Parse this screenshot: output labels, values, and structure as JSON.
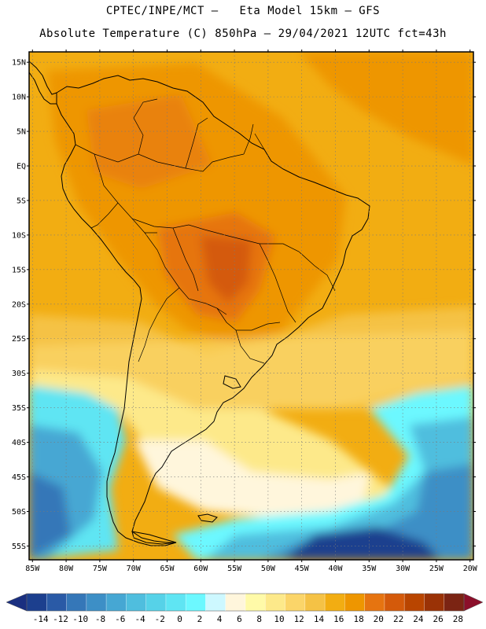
{
  "header": {
    "line1": "CPTEC/INPE/MCT –   Eta Model 15km – GFS",
    "line2": "Absolute Temperature (C) 850hPa – 29/04/2021 12UTC fct=43h"
  },
  "map": {
    "lat_labels": [
      "15N",
      "10N",
      "5N",
      "EQ",
      "5S",
      "10S",
      "15S",
      "20S",
      "25S",
      "30S",
      "35S",
      "40S",
      "45S",
      "50S",
      "55S"
    ],
    "lat_values": [
      15,
      10,
      5,
      0,
      -5,
      -10,
      -15,
      -20,
      -25,
      -30,
      -35,
      -40,
      -45,
      -50,
      -55
    ],
    "lon_labels": [
      "85W",
      "80W",
      "75W",
      "70W",
      "65W",
      "60W",
      "55W",
      "50W",
      "45W",
      "40W",
      "35W",
      "30W",
      "25W",
      "20W"
    ],
    "lon_values": [
      -85,
      -80,
      -75,
      -70,
      -65,
      -60,
      -55,
      -50,
      -45,
      -40,
      -35,
      -30,
      -25,
      -20
    ],
    "lon_range": [
      -85.5,
      -19.5
    ],
    "lat_range": [
      -57,
      16.5
    ]
  },
  "colorbar": {
    "tick_labels": [
      "-14",
      "-12",
      "-10",
      "-8",
      "-6",
      "-4",
      "-2",
      "0",
      "2",
      "4",
      "6",
      "8",
      "10",
      "12",
      "14",
      "16",
      "18",
      "20",
      "22",
      "24",
      "26",
      "28"
    ],
    "colors": [
      "#1c3f8e",
      "#2a5aa6",
      "#3577b8",
      "#3d8fc6",
      "#46a7d3",
      "#4fbede",
      "#56d2e8",
      "#5fe5f3",
      "#6cf8ff",
      "#cdf8ff",
      "#fff6dc",
      "#fffaa8",
      "#fde98a",
      "#fbd569",
      "#f5c245",
      "#f2ad12",
      "#ee9600",
      "#e67410",
      "#d45a0a",
      "#b94500",
      "#9a3206",
      "#7b2413"
    ],
    "under_color": "#1a2f80",
    "over_color": "#8b0f2a"
  },
  "regions": {
    "orange_interior": "#e98e1f",
    "warm_orange": "#f0a820",
    "yellow_band": "#fde6a0",
    "cold_ocean": "#4ebddd"
  }
}
